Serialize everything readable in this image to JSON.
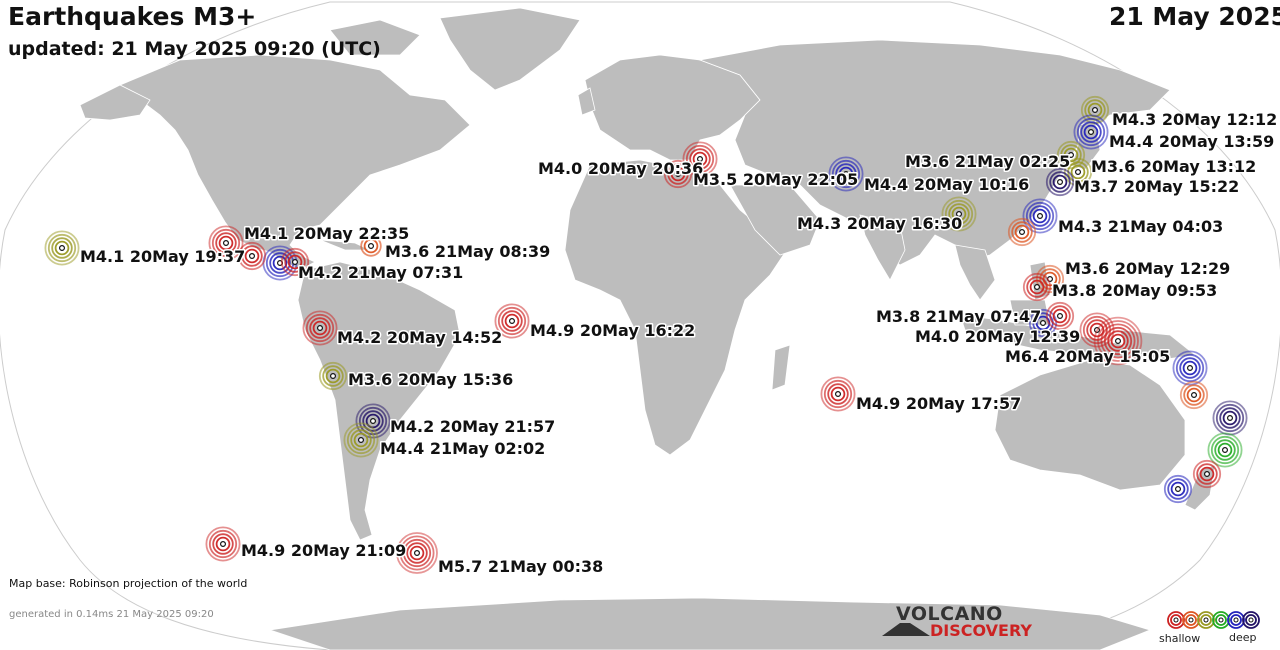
{
  "header": {
    "title": "Earthquakes M3+",
    "updated": "updated: 21 May 2025 09:20 (UTC)",
    "date": "21 May 2025"
  },
  "footer": {
    "map_base": "Map base: Robinson projection of the world",
    "generated": "generated in 0.14ms 21 May 2025 09:20"
  },
  "logo": {
    "line1": "VOLCANO",
    "line2": "DISCOVERY"
  },
  "legend": {
    "shallow_label": "shallow",
    "deep_label": "deep",
    "depth_colors": [
      "#cc2222",
      "#dd5522",
      "#999922",
      "#22aa22",
      "#2222bb",
      "#221166"
    ]
  },
  "colors": {
    "land": "#bdbdbd",
    "ocean": "#ffffff",
    "outline": "#cccccc"
  },
  "quakes": [
    {
      "label": "M4.1 20May 19:37",
      "depth_color": "#999922"
    },
    {
      "label": "M4.1 20May 22:35",
      "depth_color": "#cc2222"
    },
    {
      "label": "M4.2 21May 07:31",
      "depth_color": "#2222bb"
    },
    {
      "label": "M3.6 21May 08:39",
      "depth_color": "#dd5522"
    },
    {
      "label": "M4.2 20May 14:52",
      "depth_color": "#cc2222"
    },
    {
      "label": "M3.6 20May 15:36",
      "depth_color": "#999922"
    },
    {
      "label": "M4.2 20May 21:57",
      "depth_color": "#221166"
    },
    {
      "label": "M4.4 21May 02:02",
      "depth_color": "#999922"
    },
    {
      "label": "M4.9 20May 21:09",
      "depth_color": "#cc2222"
    },
    {
      "label": "M5.7 21May 00:38",
      "depth_color": "#cc2222"
    },
    {
      "label": "M4.9 20May 16:22",
      "depth_color": "#cc2222"
    },
    {
      "label": "M4.0 20May 20:36",
      "depth_color": "#cc2222"
    },
    {
      "label": "M3.5 20May 22:05",
      "depth_color": "#cc2222"
    },
    {
      "label": "M4.4 20May 10:16",
      "depth_color": "#2222bb"
    },
    {
      "label": "M4.3 20May 16:30",
      "depth_color": "#999922"
    },
    {
      "label": "M4.9 20May 17:57",
      "depth_color": "#cc2222"
    },
    {
      "label": "M4.3 20May 12:12",
      "depth_color": "#999922"
    },
    {
      "label": "M4.4 20May 13:59",
      "depth_color": "#2222bb"
    },
    {
      "label": "M3.6 21May 02:25",
      "depth_color": "#999922"
    },
    {
      "label": "M3.6 20May 13:12",
      "depth_color": "#999922"
    },
    {
      "label": "M3.7 20May 15:22",
      "depth_color": "#221166"
    },
    {
      "label": "M4.3 21May 04:03",
      "depth_color": "#2222bb"
    },
    {
      "label": "M3.6 20May 12:29",
      "depth_color": "#dd5522"
    },
    {
      "label": "M3.8 20May 09:53",
      "depth_color": "#cc2222"
    },
    {
      "label": "M3.8 21May 07:47",
      "depth_color": "#2222bb"
    },
    {
      "label": "M4.0 20May 12:39",
      "depth_color": "#cc2222"
    },
    {
      "label": "M6.4 20May 15:05",
      "depth_color": "#cc2222"
    },
    {
      "label": "",
      "depth_color": "#2222bb"
    },
    {
      "label": "",
      "depth_color": "#dd5522"
    },
    {
      "label": "",
      "depth_color": "#221166"
    },
    {
      "label": "",
      "depth_color": "#22aa22"
    },
    {
      "label": "",
      "depth_color": "#cc2222"
    },
    {
      "label": "",
      "depth_color": "#2222bb"
    },
    {
      "label": "",
      "depth_color": "#cc2222"
    },
    {
      "label": "",
      "depth_color": "#dd5522"
    },
    {
      "label": "",
      "depth_color": "#cc2222"
    },
    {
      "label": "",
      "depth_color": "#cc2222"
    }
  ]
}
